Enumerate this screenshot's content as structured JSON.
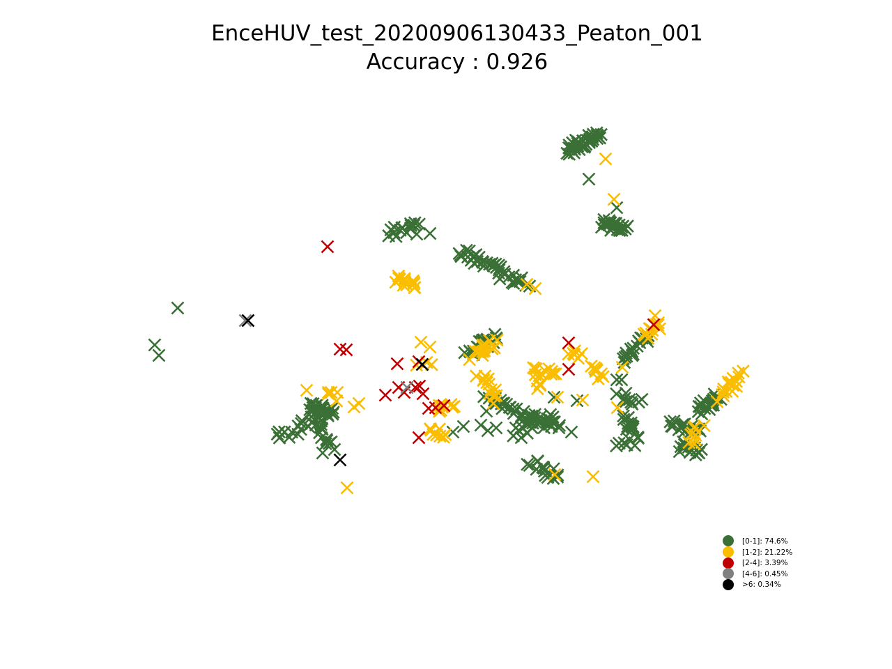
{
  "chart_data": {
    "type": "scatter",
    "title": "EnceHUV_test_20200906130433_Peaton_001",
    "subtitle": "Accuracy : 0.926",
    "axes_visible": false,
    "grid": false,
    "marker": "x",
    "legend_position": "lower-right",
    "legend": [
      {
        "label": "[0-1]: 74.6%",
        "color": "#3a7035"
      },
      {
        "label": "[1-2]: 21.22%",
        "color": "#fbbd00"
      },
      {
        "label": "[2-4]: 3.39%",
        "color": "#c00000"
      },
      {
        "label": "[4-6]: 0.45%",
        "color": "#808080"
      },
      {
        "label": ">6: 0.34%",
        "color": "#000000"
      }
    ],
    "series": [
      {
        "color": "#3a7035",
        "clusters": [
          [
            815,
            215,
            860,
            195,
            40
          ],
          [
            865,
            322,
            895,
            325,
            24
          ],
          [
            560,
            335,
            600,
            322,
            16
          ],
          [
            660,
            360,
            755,
            410,
            40
          ],
          [
            670,
            505,
            710,
            485,
            22
          ],
          [
            400,
            628,
            440,
            608,
            12
          ],
          [
            445,
            585,
            475,
            590,
            26
          ],
          [
            450,
            600,
            475,
            635,
            16
          ],
          [
            700,
            575,
            730,
            585,
            12
          ],
          [
            730,
            590,
            800,
            610,
            26
          ],
          [
            740,
            620,
            800,
            600,
            18
          ],
          [
            760,
            660,
            800,
            685,
            14
          ],
          [
            895,
            520,
            930,
            480,
            18
          ],
          [
            890,
            570,
            915,
            575,
            10
          ],
          [
            900,
            600,
            910,
            620,
            14
          ],
          [
            890,
            640,
            915,
            630,
            8
          ],
          [
            960,
            610,
            1005,
            620,
            16
          ],
          [
            980,
            640,
            1005,
            650,
            14
          ],
          [
            1000,
            590,
            1030,
            570,
            18
          ]
        ],
        "singles": [
          [
            255,
            442
          ],
          [
            222,
            495
          ],
          [
            228,
            510
          ],
          [
            845,
            257
          ],
          [
            885,
            298
          ],
          [
            617,
            335
          ],
          [
            598,
            336
          ],
          [
            463,
            650
          ],
          [
            480,
            645
          ],
          [
            650,
            620
          ],
          [
            665,
            612
          ],
          [
            690,
            610
          ],
          [
            700,
            618
          ],
          [
            712,
            614
          ],
          [
            748,
            628
          ],
          [
            820,
            620
          ],
          [
            828,
            575
          ],
          [
            855,
            530
          ],
          [
            892,
            545
          ],
          [
            885,
            545
          ],
          [
            975,
            648
          ],
          [
            1010,
            575
          ],
          [
            786,
            685
          ],
          [
            795,
            570
          ],
          [
            727,
            580
          ],
          [
            698,
            590
          ]
        ]
      },
      {
        "color": "#fbbd00",
        "clusters": [
          [
            570,
            400,
            600,
            410,
            14
          ],
          [
            680,
            510,
            710,
            490,
            12
          ],
          [
            690,
            535,
            715,
            575,
            14
          ],
          [
            765,
            535,
            800,
            530,
            12
          ],
          [
            770,
            555,
            775,
            545,
            4
          ],
          [
            820,
            505,
            835,
            510,
            6
          ],
          [
            845,
            525,
            865,
            540,
            8
          ],
          [
            925,
            480,
            945,
            465,
            12
          ],
          [
            1035,
            570,
            1065,
            535,
            16
          ],
          [
            990,
            640,
            1005,
            615,
            10
          ],
          [
            470,
            570,
            483,
            568,
            5
          ],
          [
            615,
            615,
            635,
            625,
            8
          ],
          [
            625,
            585,
            650,
            580,
            8
          ],
          [
            600,
            520,
            615,
            525,
            4
          ]
        ],
        "singles": [
          [
            869,
            228
          ],
          [
            881,
            286
          ],
          [
            768,
            414
          ],
          [
            756,
            408
          ],
          [
            940,
            453
          ],
          [
            604,
            491
          ],
          [
            617,
            498
          ],
          [
            440,
            560
          ],
          [
            508,
            584
          ],
          [
            515,
            579
          ],
          [
            498,
            700
          ],
          [
            851,
            684
          ],
          [
            796,
            681
          ],
          [
            886,
            585
          ],
          [
            893,
            527
          ],
          [
            836,
            574
          ],
          [
            800,
            570
          ],
          [
            686,
            505
          ],
          [
            693,
            495
          ],
          [
            1045,
            548
          ]
        ]
      },
      {
        "color": "#c00000",
        "singles": [
          [
            470,
            354
          ],
          [
            488,
            501
          ],
          [
            497,
            502
          ],
          [
            570,
            522
          ],
          [
            601,
            519
          ],
          [
            553,
            567
          ],
          [
            572,
            556
          ],
          [
            580,
            563
          ],
          [
            596,
            556
          ],
          [
            602,
            554
          ],
          [
            607,
            565
          ],
          [
            615,
            586
          ],
          [
            625,
            585
          ],
          [
            637,
            582
          ],
          [
            601,
            628
          ],
          [
            816,
            492
          ],
          [
            816,
            530
          ],
          [
            938,
            466
          ]
        ]
      },
      {
        "color": "#808080",
        "singles": [
          [
            352,
            460
          ],
          [
            584,
            556
          ]
        ]
      },
      {
        "color": "#000000",
        "singles": [
          [
            356,
            460
          ],
          [
            606,
            523
          ],
          [
            488,
            660
          ]
        ]
      }
    ]
  }
}
